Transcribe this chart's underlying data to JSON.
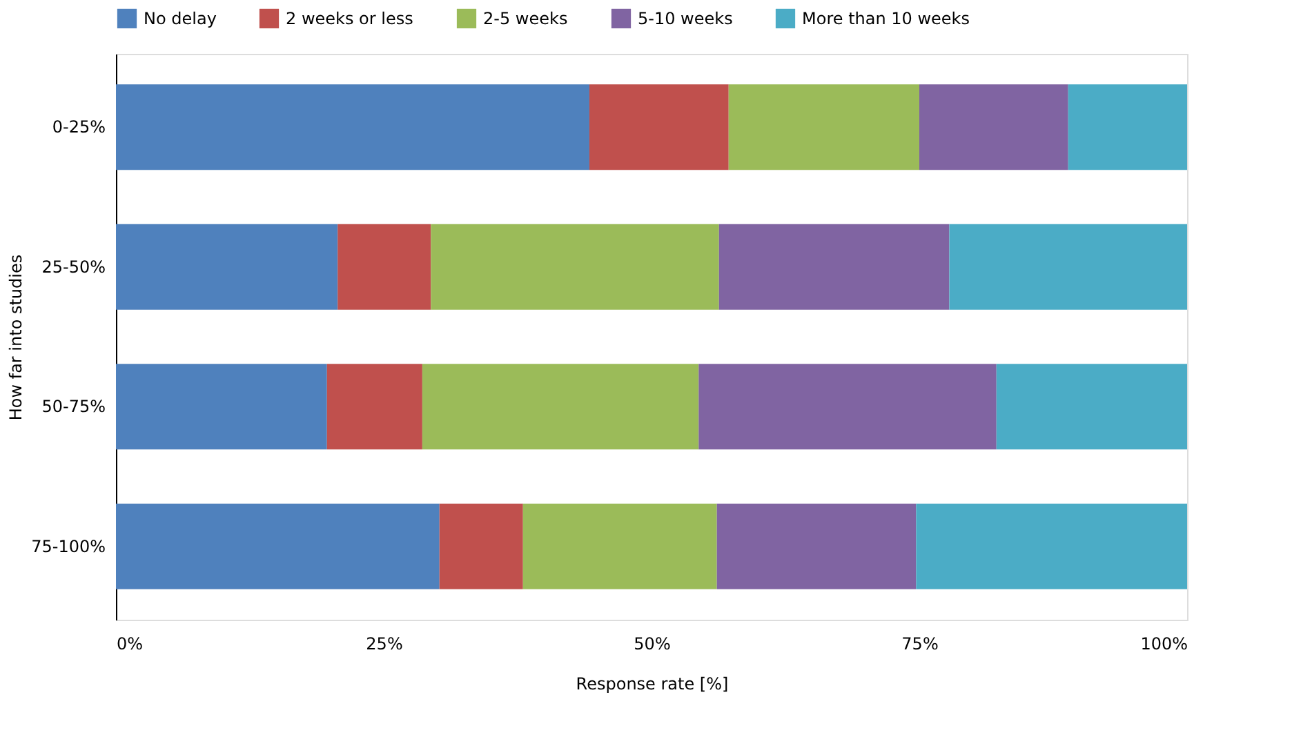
{
  "chart_data": {
    "type": "bar",
    "orientation": "horizontal",
    "stacked": true,
    "xlabel": "Response rate [%]",
    "ylabel": "How far into studies",
    "categories": [
      "0-25%",
      "25-50%",
      "50-75%",
      "75-100%"
    ],
    "series": [
      {
        "name": "No delay",
        "color": "#4f81bd",
        "values": [
          44.2,
          20.7,
          19.7,
          30.2
        ]
      },
      {
        "name": "2 weeks or less",
        "color": "#c0504d",
        "values": [
          13.0,
          8.7,
          8.9,
          7.8
        ]
      },
      {
        "name": "2-5 weeks",
        "color": "#9bbb59",
        "values": [
          17.8,
          26.9,
          25.8,
          18.1
        ]
      },
      {
        "name": "5-10 weeks",
        "color": "#8064a2",
        "values": [
          13.9,
          21.5,
          27.8,
          18.6
        ]
      },
      {
        "name": "More than 10 weeks",
        "color": "#4bacc6",
        "values": [
          11.1,
          22.2,
          17.8,
          25.3
        ]
      }
    ],
    "xlim": [
      0,
      100
    ],
    "xticks": [
      {
        "value": 0,
        "label": "0%"
      },
      {
        "value": 25,
        "label": "25%"
      },
      {
        "value": 50,
        "label": "50%"
      },
      {
        "value": 75,
        "label": "75%"
      },
      {
        "value": 100,
        "label": "100%"
      }
    ],
    "grid": false,
    "legend": "top"
  }
}
